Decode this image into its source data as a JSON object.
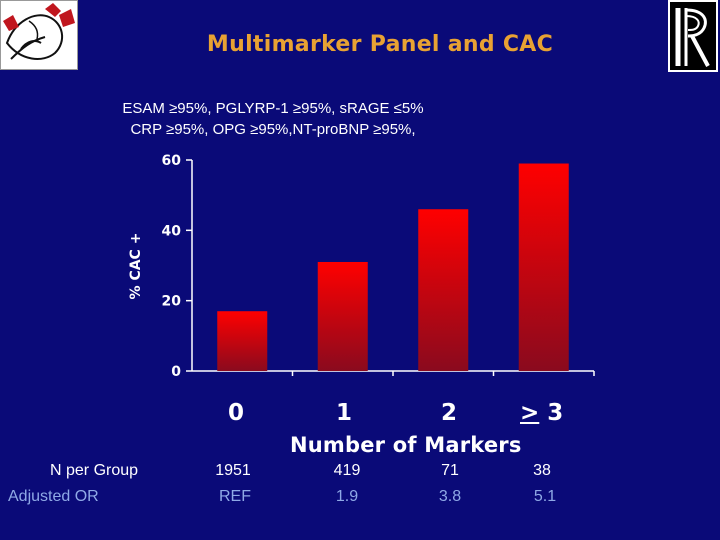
{
  "title": "Multimarker Panel and CAC",
  "subtitle_lines": [
    "ESAM ≥95%, PGLYRP-1 ≥95%, sRAGE ≤5%",
    "CRP ≥95%, OPG ≥95%,NT-proBNP ≥95%,"
  ],
  "chart_data": {
    "type": "bar",
    "categories": [
      "0",
      "1",
      "2",
      ">3"
    ],
    "values": [
      17,
      31,
      46,
      59
    ],
    "xlabel": "Number of Markers",
    "ylabel": "% CAC +",
    "ylim": [
      0,
      60
    ],
    "yticks": [
      "0",
      "20",
      "40",
      "60"
    ],
    "bar_color": "#ff0000",
    "bar_shadow_color": "#8a0a1e",
    "grid": false
  },
  "table": {
    "rows": [
      {
        "label": "N per Group",
        "values": [
          "1951",
          "419",
          "71",
          "38"
        ]
      },
      {
        "label": "Adjusted OR",
        "values": [
          "REF",
          "1.9",
          "3.8",
          "5.1"
        ]
      }
    ]
  },
  "colors": {
    "background": "#0a0a78",
    "title": "#e8a233",
    "text": "#ffffff",
    "secondary_text": "#8fa9e6"
  },
  "icons": {
    "left_logo": "heart-vessel-logo",
    "right_logo": "institution-r-logo"
  }
}
